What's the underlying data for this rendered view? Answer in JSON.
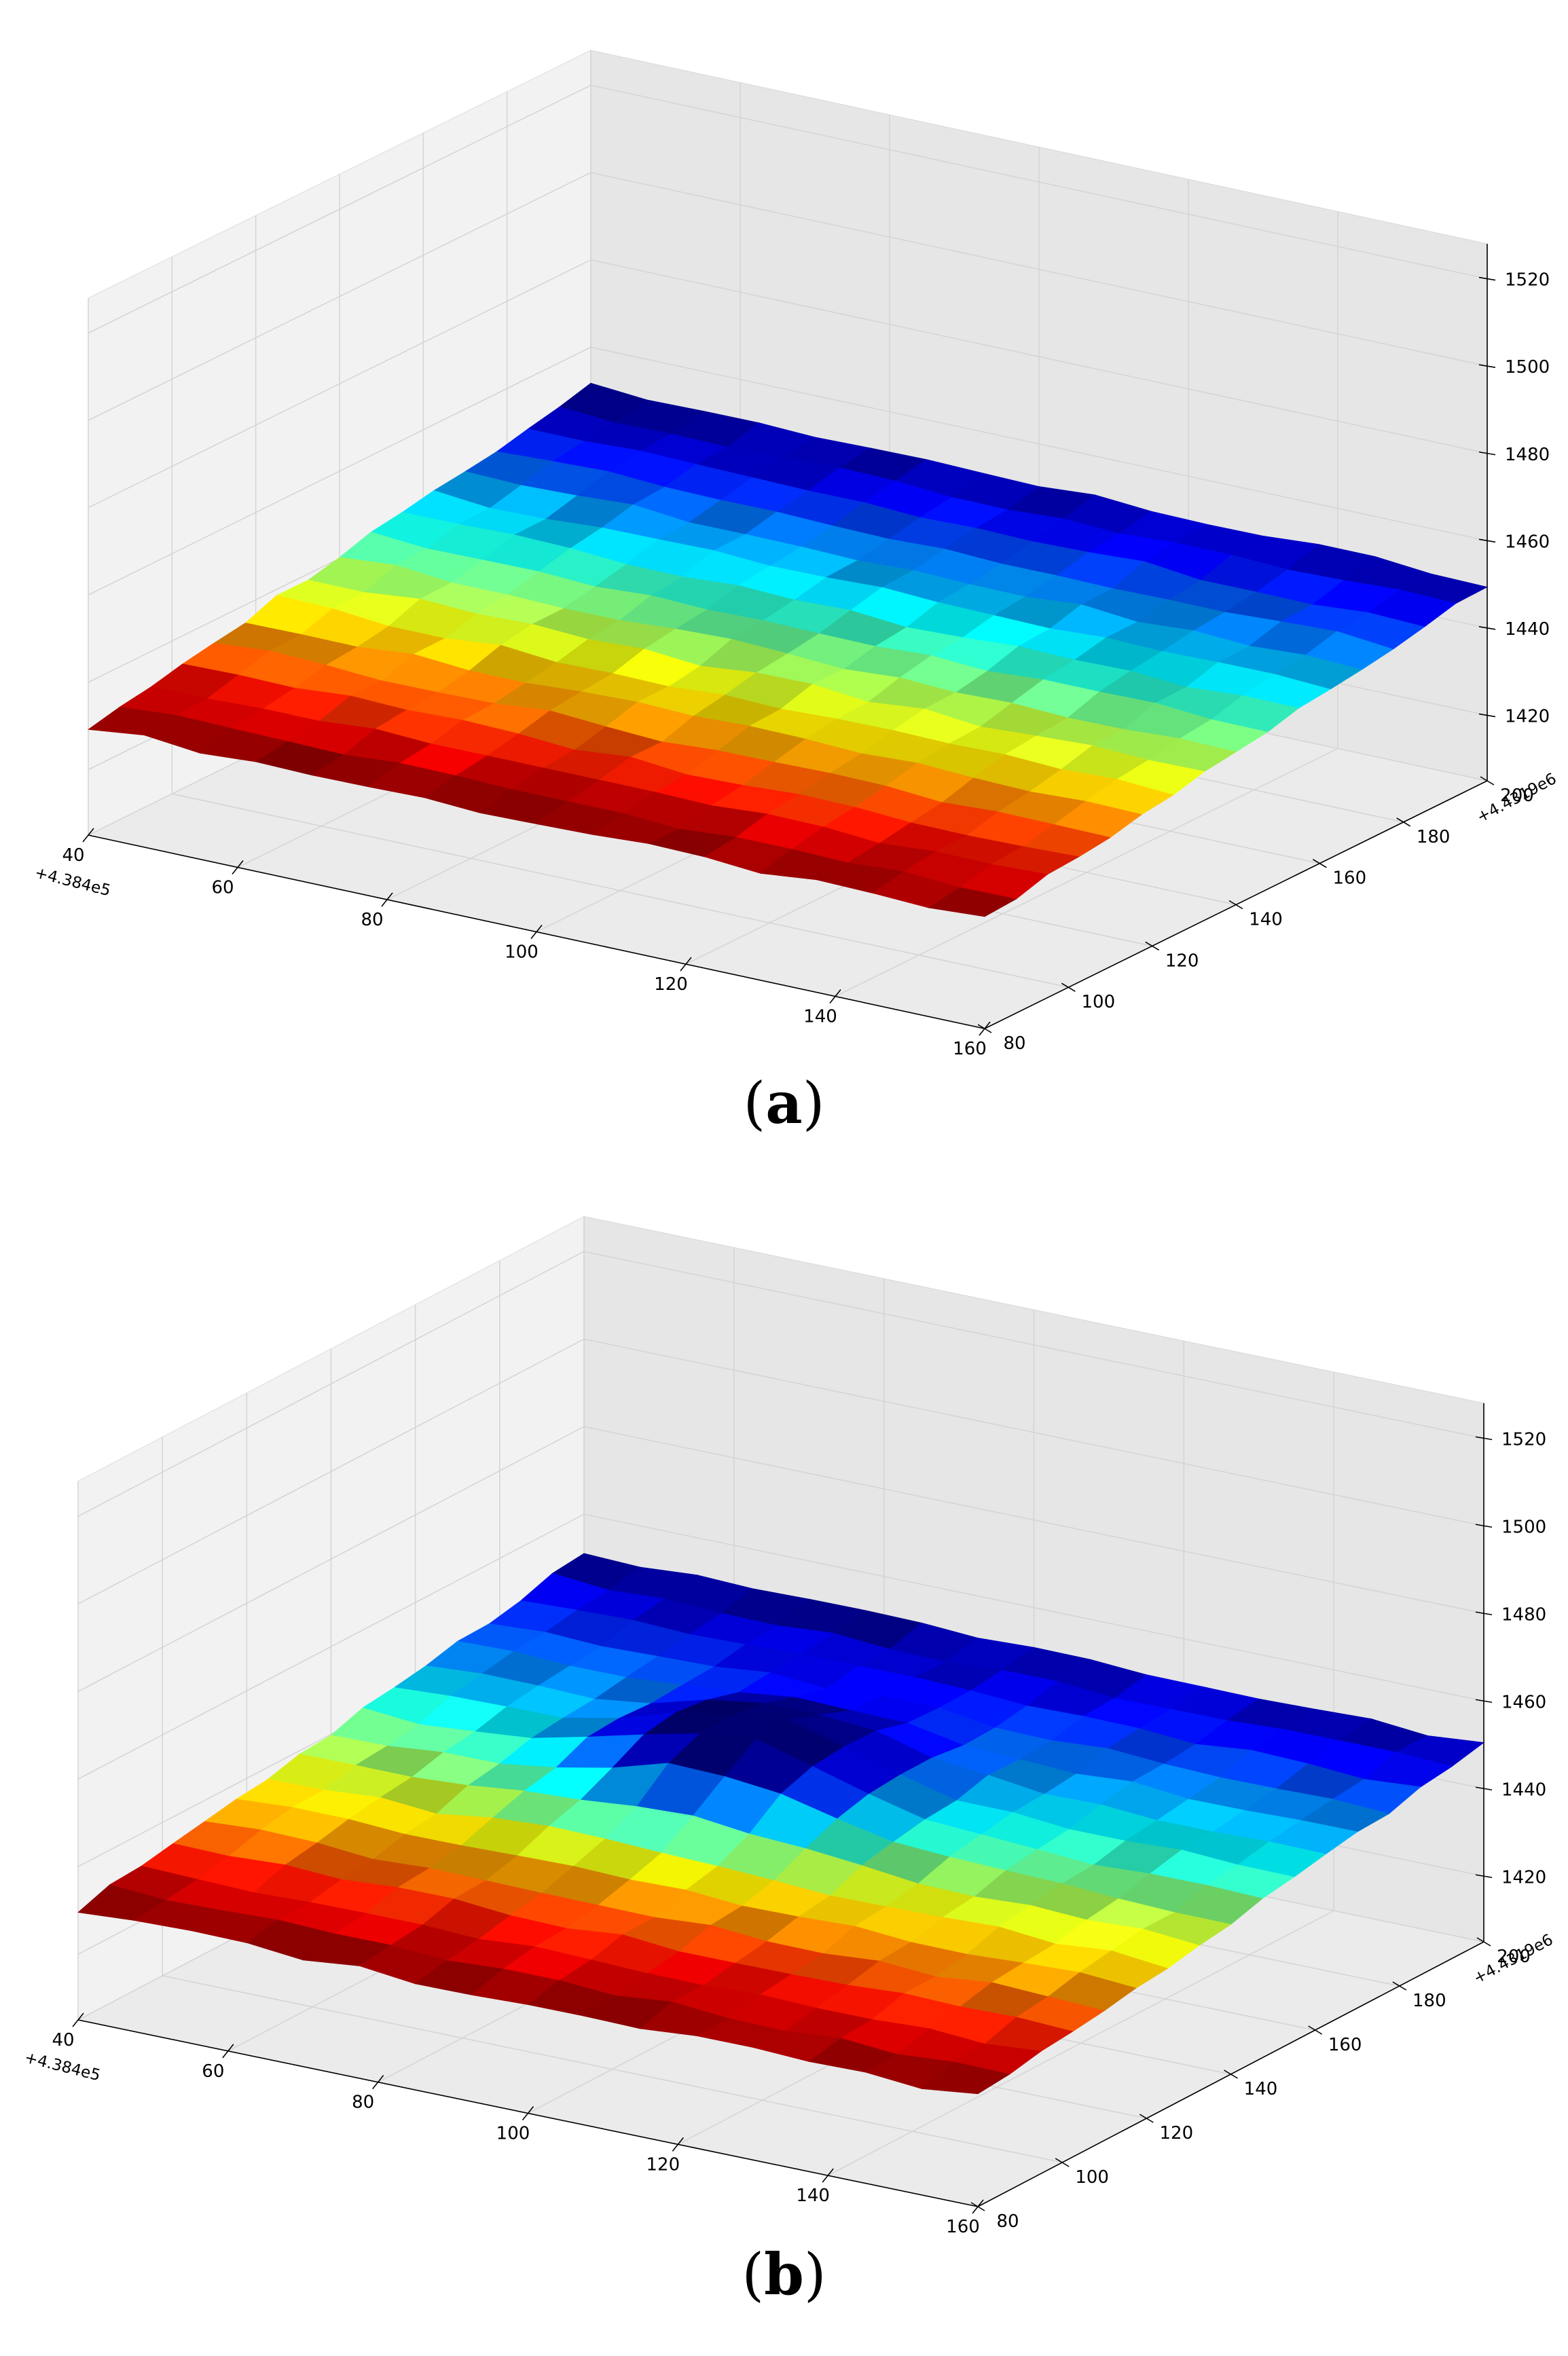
{
  "figures": [
    {
      "caption": {
        "open": "(",
        "letter": "a",
        "close": ")"
      },
      "chart_data": {
        "type": "surface3d",
        "colormap": "jet",
        "x_ticks": [
          "40",
          "60",
          "80",
          "100",
          "120",
          "140",
          "160"
        ],
        "x_offset": "+4.384e5",
        "xlim": [
          40,
          160
        ],
        "y_ticks": [
          "80",
          "100",
          "120",
          "140",
          "160",
          "180",
          "200"
        ],
        "y_offset": "+4.4319e6",
        "ylim": [
          80,
          200
        ],
        "z_ticks": [
          "1420",
          "1440",
          "1460",
          "1480",
          "1500",
          "1520"
        ],
        "zlim": [
          1405,
          1528
        ],
        "grid": true,
        "surface": {
          "x_range": [
            40,
            160
          ],
          "y_range": [
            80,
            200
          ],
          "corner_heights": {
            "x40_y80": 1430,
            "x40_y200": 1451,
            "x160_y80": 1430,
            "x160_y200": 1450
          },
          "color_range": [
            1430,
            1451
          ],
          "peak": null
        }
      }
    },
    {
      "caption": {
        "open": "(",
        "letter": "b",
        "close": ")"
      },
      "chart_data": {
        "type": "surface3d",
        "colormap": "jet",
        "x_ticks": [
          "40",
          "60",
          "80",
          "100",
          "120",
          "140",
          "160"
        ],
        "x_offset": "+4.384e5",
        "xlim": [
          40,
          160
        ],
        "y_ticks": [
          "80",
          "100",
          "120",
          "140",
          "160",
          "180",
          "200"
        ],
        "y_offset": "+4.4319e6",
        "ylim": [
          80,
          200
        ],
        "z_ticks": [
          "1420",
          "1440",
          "1460",
          "1480",
          "1500",
          "1520"
        ],
        "zlim": [
          1405,
          1528
        ],
        "grid": true,
        "surface": {
          "x_range": [
            40,
            160
          ],
          "y_range": [
            80,
            200
          ],
          "corner_heights": {
            "x40_y80": 1430,
            "x40_y200": 1451,
            "x160_y80": 1430,
            "x160_y200": 1450
          },
          "color_range": [
            1430,
            1451
          ],
          "peak": {
            "x": 90,
            "y": 150,
            "height": 12,
            "radius": 20
          }
        }
      }
    }
  ]
}
